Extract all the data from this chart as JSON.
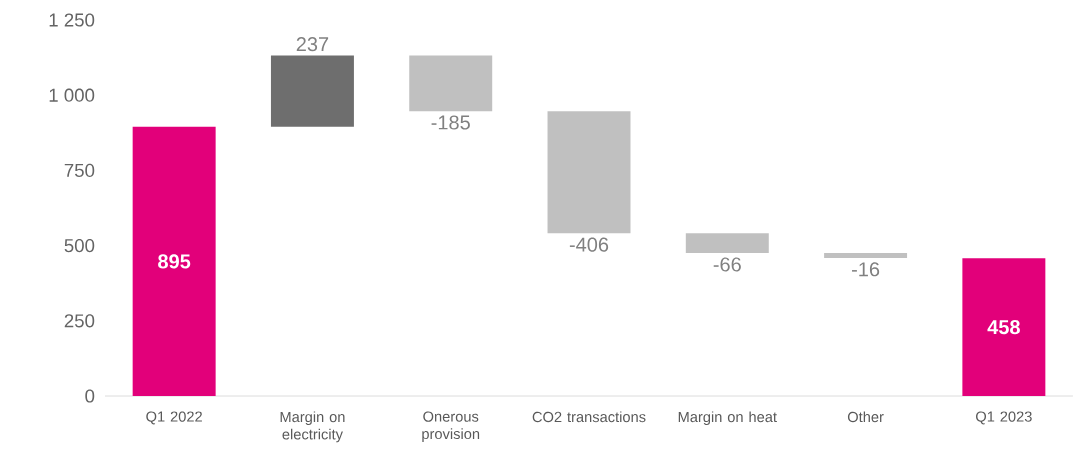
{
  "chart_data": {
    "type": "bar",
    "categories": [
      "Q1 2022",
      "Margin on electricity",
      "Onerous provision",
      "CO2 transactions",
      "Margin on heat",
      "Other",
      "Q1 2023"
    ],
    "values": [
      895,
      237,
      -185,
      -406,
      -66,
      -16,
      458
    ],
    "base": [
      0,
      895,
      1132,
      947,
      541,
      475,
      0
    ],
    "colors": [
      "#e2007a",
      "#6e6e6e",
      "#c0c0c0",
      "#c0c0c0",
      "#c0c0c0",
      "#c0c0c0",
      "#e2007a"
    ],
    "data_labels": true,
    "ylim": [
      0,
      1250
    ],
    "yticks": [
      0,
      250,
      500,
      750,
      {
        "value": 1000,
        "label": "1 000"
      },
      {
        "value": 1250,
        "label": "1 250"
      }
    ]
  }
}
